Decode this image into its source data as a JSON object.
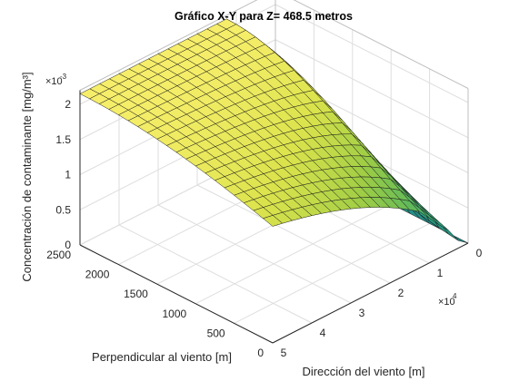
{
  "chart_data": {
    "type": "surface",
    "title": "Gráfico X-Y para Z= 468.5 metros",
    "xlabel": "Dirección del viento [m]",
    "ylabel": "Perpendicular al viento [m]",
    "zlabel": "Concentración de contaminante [mg/m³]",
    "x_ticks": [
      "0",
      "1",
      "2",
      "3",
      "4",
      "5"
    ],
    "x_multiplier": "×10",
    "x_multiplier_exp": "4",
    "y_ticks": [
      "0",
      "500",
      "1000",
      "1500",
      "2000",
      "2500"
    ],
    "z_ticks": [
      "0",
      "0.5",
      "1",
      "1.5",
      "2"
    ],
    "z_multiplier": "×10",
    "z_multiplier_exp": "-3",
    "xlim": [
      0,
      50000
    ],
    "ylim": [
      0,
      2500
    ],
    "zlim": [
      0,
      0.002
    ],
    "grid": true,
    "colormap": [
      "#21888c",
      "#2c9c79",
      "#5cb85c",
      "#9fcd45",
      "#dbe34c",
      "#f6ee6a"
    ],
    "surface": {
      "description_source": "sampled from rendered surface",
      "x": [
        0,
        2500,
        5000,
        7500,
        10000,
        12500,
        15000,
        17500,
        20000,
        22500,
        25000,
        27500,
        30000,
        32500,
        35000,
        37500,
        40000,
        42500,
        45000,
        47500,
        50000
      ],
      "y": [
        0,
        125,
        250,
        375,
        500,
        625,
        750,
        875,
        1000,
        1125,
        1250,
        1375,
        1500,
        1625,
        1750,
        1875,
        2000,
        2125,
        2250,
        2375,
        2500
      ],
      "peak_value": 0.00215,
      "peak_x": 10000,
      "peak_y": 2500
    }
  }
}
